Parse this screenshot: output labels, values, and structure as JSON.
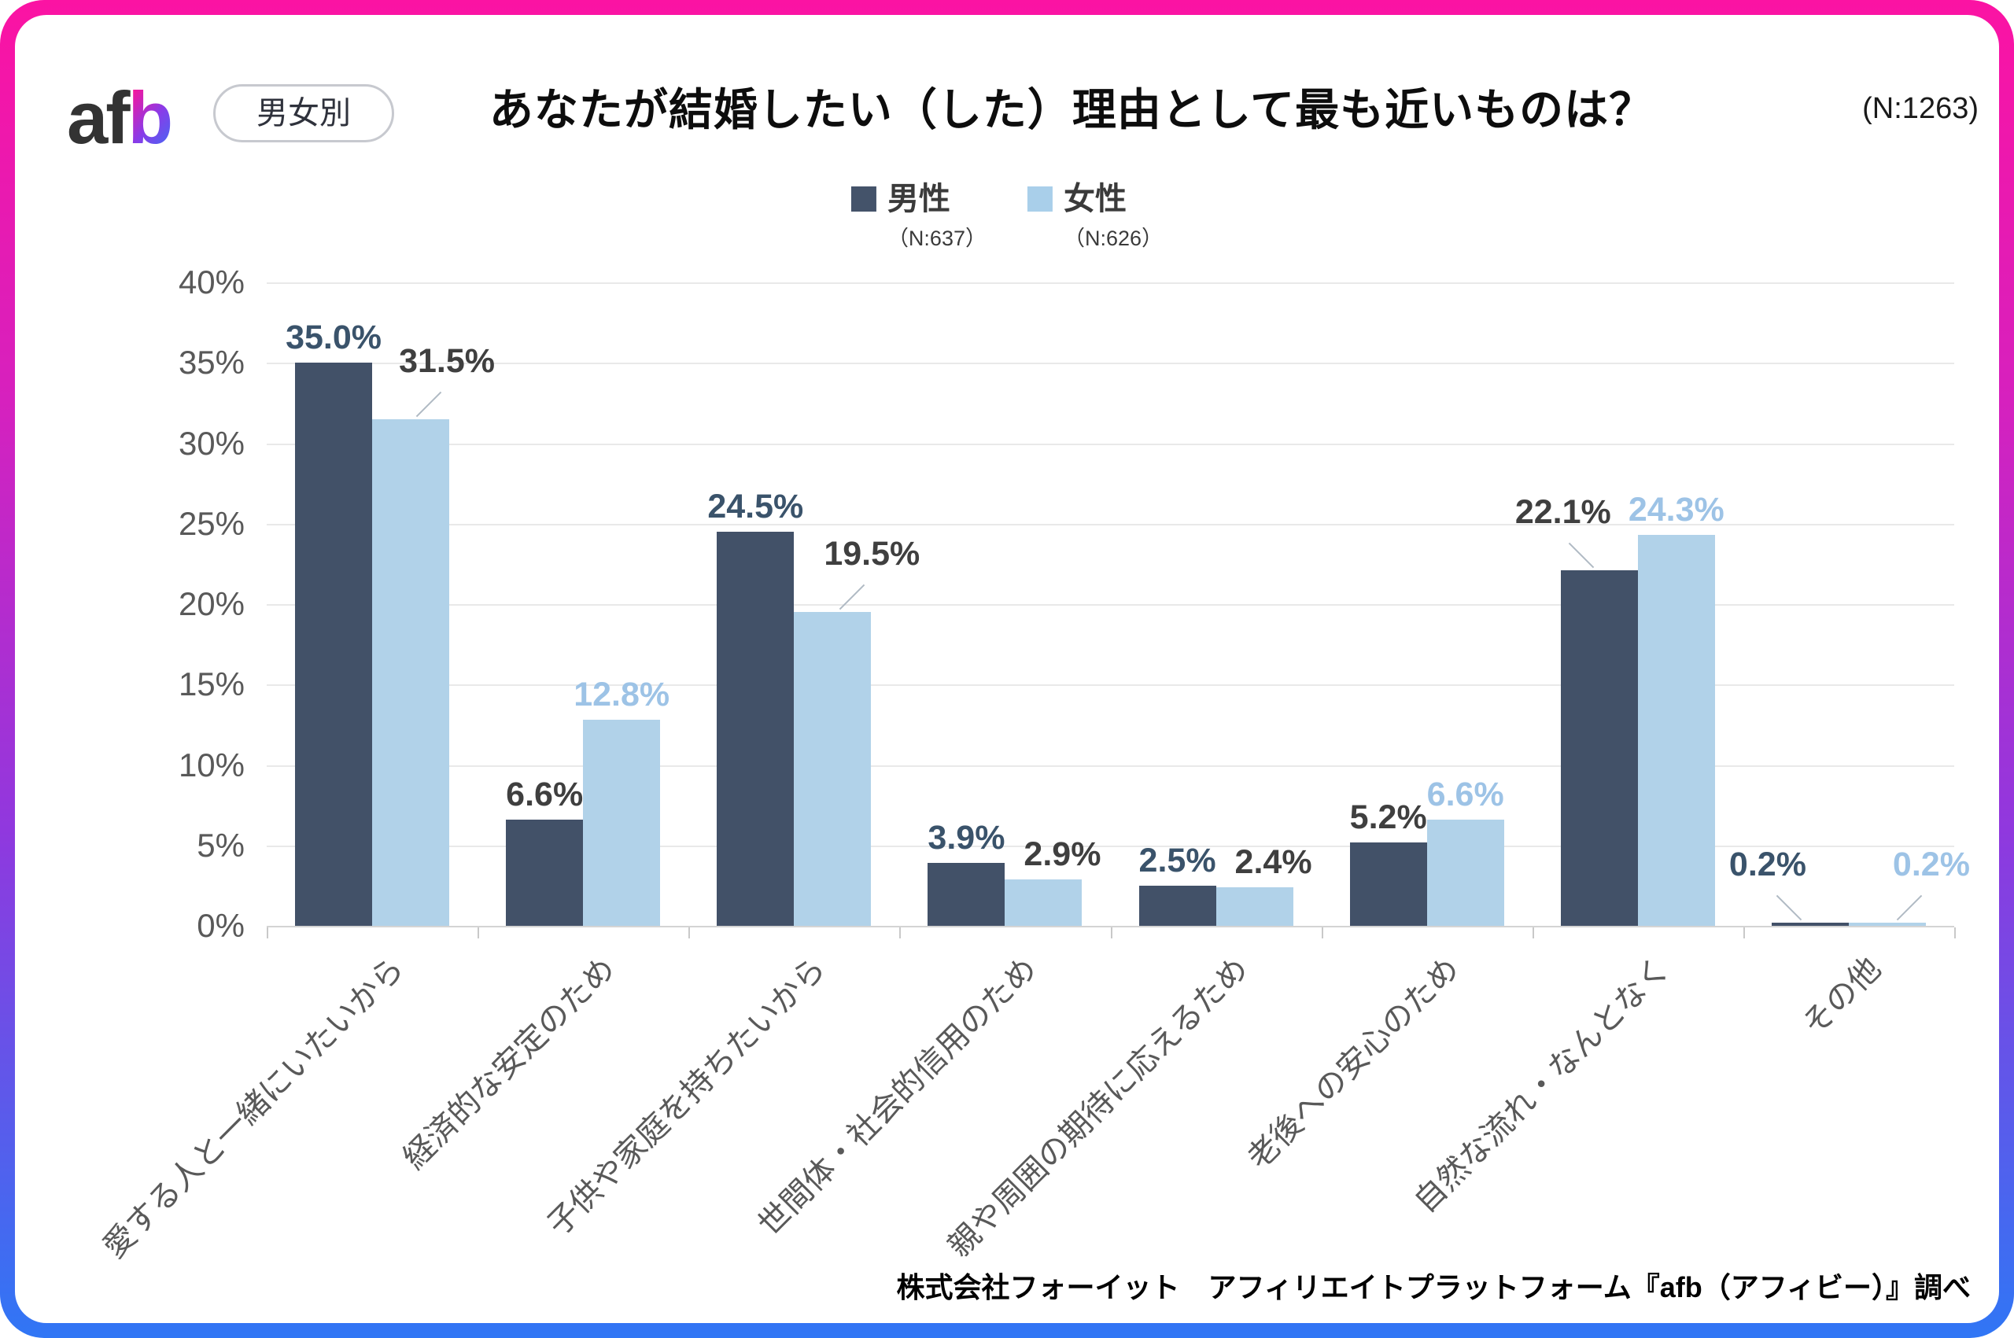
{
  "header": {
    "logo_af": "af",
    "logo_b": "b",
    "badge": "男女別",
    "title": "あなたが結婚したい（した）理由として最も近いものは？",
    "sample": "(N:1263)"
  },
  "legend": {
    "items": [
      {
        "label": "男性",
        "n": "（N:637）",
        "color": "#44536a"
      },
      {
        "label": "女性",
        "n": "（N:626）",
        "color": "#a9cfea"
      }
    ]
  },
  "chart_data": {
    "type": "bar",
    "title": "あなたが結婚したい（した）理由として最も近いものは？",
    "total_n": 1263,
    "categories": [
      "愛する人と一緒にいたいから",
      "経済的な安定のため",
      "子供や家庭を持ちたいから",
      "世間体・社会的信用のため",
      "親や周囲の期待に応えるため",
      "老後への安心のため",
      "自然な流れ・なんとなく",
      "その他"
    ],
    "series": [
      {
        "name": "男性",
        "n": 637,
        "color": "#425168",
        "values": [
          35.0,
          6.6,
          24.5,
          3.9,
          2.5,
          5.2,
          22.1,
          0.2
        ]
      },
      {
        "name": "女性",
        "n": 626,
        "color": "#b1d2e9",
        "values": [
          31.5,
          12.8,
          19.5,
          2.9,
          2.4,
          6.6,
          24.3,
          0.2
        ]
      }
    ],
    "value_suffix": "%",
    "xlabel": "",
    "ylabel": "",
    "ylim": [
      0,
      40
    ],
    "ytick_step": 5,
    "grid": true,
    "legend_position": "top",
    "label_styles": {
      "male": [
        {
          "emph": true
        },
        {
          "emph": false
        },
        {
          "emph": true
        },
        {
          "emph": true
        },
        {
          "emph": true
        },
        {
          "emph": false
        },
        {
          "emph": false,
          "leader": true,
          "dx": -46
        },
        {
          "emph": true,
          "leader": true,
          "dx": -54
        }
      ],
      "female": [
        {
          "emph": false,
          "leader": true,
          "dx": 46
        },
        {
          "emph": true
        },
        {
          "emph": false,
          "leader": true,
          "dx": 50
        },
        {
          "emph": false,
          "dx": 24
        },
        {
          "emph": false,
          "dx": 24
        },
        {
          "emph": true
        },
        {
          "emph": true
        },
        {
          "emph": true,
          "leader": true,
          "dx": 56
        }
      ]
    }
  },
  "footer": "株式会社フォーイット　アフィリエイトプラットフォーム『afb（アフィビー）』調べ"
}
